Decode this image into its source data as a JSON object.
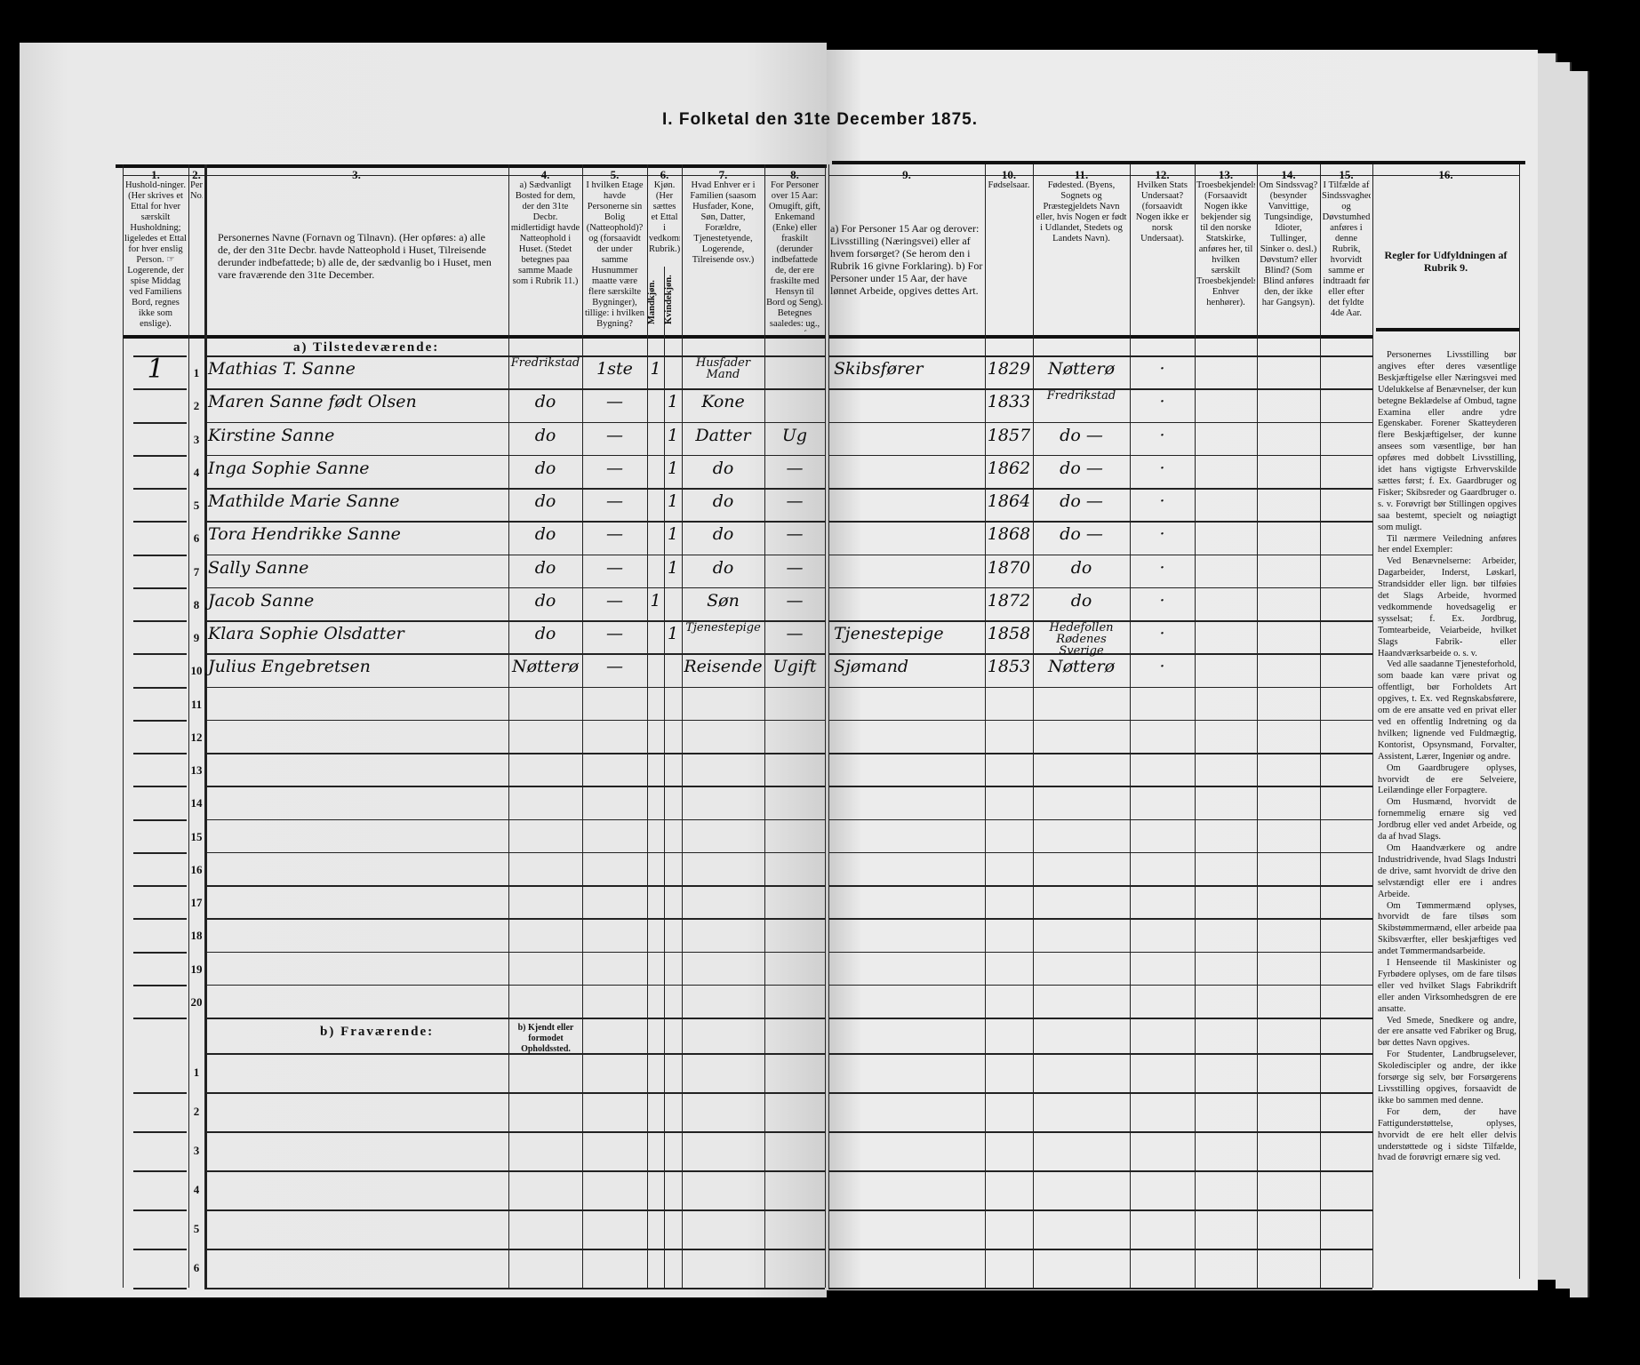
{
  "title": "I. Folketal den 31te December 1875.",
  "header": {
    "columns": [
      {
        "num": "1.",
        "text": "Hushold-ninger. (Her skrives et Ettal for hver særskilt Husholdning; ligeledes et Ettal for hver enslig Person. ☞ Logerende, der spise Middag ved Familiens Bord, regnes ikke som enslige)."
      },
      {
        "num": "2.",
        "text": "Personernes No."
      },
      {
        "num": "3.",
        "text": "Personernes Navne (Fornavn og Tilnavn). (Her opføres: a) alle de, der den 31te Decbr. havde Natteophold i Huset, Tilreisende derunder indbefattede; b) alle de, der sædvanlig bo i Huset, men vare fraværende den 31te December."
      },
      {
        "num": "4.",
        "text": "a) Sædvanligt Bosted for dem, der den 31te Decbr. midlertidigt havde Natteophold i Huset. (Stedet betegnes paa samme Maade som i Rubrik 11.)"
      },
      {
        "num": "5.",
        "text": "I hvilken Etage havde Personerne sin Bolig (Natteophold)? og (forsaavidt der under samme Husnummer maatte være flere særskilte Bygninger), tillige: i hvilken Bygning?"
      },
      {
        "num": "6.",
        "text": "Kjøn. (Her sættes et Ettal i vedkommende Rubrik.)",
        "sub": [
          "Mandkjøn.",
          "Kvindekjøn."
        ]
      },
      {
        "num": "7.",
        "text": "Hvad Enhver er i Familien (saasom Husfader, Kone, Søn, Datter, Forældre, Tjenestetyende, Logerende, Tilreisende osv.)"
      },
      {
        "num": "8.",
        "text": "For Personer over 15 Aar: Omugift, gift, Enkemand (Enke) eller fraskilt (derunder indbefattede de, der ere fraskilte med Hensyn til Bord og Seng). Betegnes saaledes: ug., g., e., f."
      },
      {
        "num": "9.",
        "text": "a) For Personer 15 Aar og derover: Livsstilling (Næringsvei) eller af hvem forsørget? (Se herom den i Rubrik 16 givne Forklaring). b) For Personer under 15 Aar, der have lønnet Arbeide, opgives dettes Art."
      },
      {
        "num": "10.",
        "text": "Fødselsaar."
      },
      {
        "num": "11.",
        "text": "Fødested. (Byens, Sognets og Præstegjeldets Navn eller, hvis Nogen er født i Udlandet, Stedets og Landets Navn)."
      },
      {
        "num": "12.",
        "text": "Hvilken Stats Undersaat? (forsaavidt Nogen ikke er norsk Undersaat)."
      },
      {
        "num": "13.",
        "text": "Troesbekjendelse. (Forsaavidt Nogen ikke bekjender sig til den norske Statskirke, anføres her, til hvilken særskilt Troesbekjendelse Enhver henhører)."
      },
      {
        "num": "14.",
        "text": "Om Sindssvag? (besynder Vanvittige, Tungsindige, Idioter, Tullinger, Sinker o. desl.) Døvstum? eller Blind? (Som Blind anføres den, der ikke har Gangsyn)."
      },
      {
        "num": "15.",
        "text": "I Tilfælde af Sindssvaghed og Døvstumhed anføres i denne Rubrik, hvorvidt samme er indtraadt før eller efter det fyldte 4de Aar."
      },
      {
        "num": "16.",
        "text": "Regler for Udfyldningen af Rubrik 9."
      }
    ]
  },
  "sections": {
    "present": "a) Tilstedeværende:",
    "absent": "b) Fraværende:",
    "absent_col4": "b) Kjendt eller formodet Opholdssted."
  },
  "rows": [
    {
      "nr": "1",
      "hh": "1",
      "name": "Mathias T. Sanne",
      "bosted": "Fredrikstad",
      "etage": "1ste",
      "m": "1",
      "fam": "Husfader Mand",
      "liv": "Skibsfører",
      "aar": "1829",
      "fod": "Nøtterø",
      "stat": "·"
    },
    {
      "nr": "2",
      "name": "Maren Sanne født Olsen",
      "bosted": "do",
      "etage": "—",
      "k": "1",
      "fam": "Kone",
      "aar": "1833",
      "fod": "Fredrikstad",
      "stat": "·"
    },
    {
      "nr": "3",
      "name": "Kirstine Sanne",
      "bosted": "do",
      "etage": "—",
      "k": "1",
      "fam": "Datter",
      "civ": "Ug",
      "aar": "1857",
      "fod": "do —",
      "stat": "·"
    },
    {
      "nr": "4",
      "name": "Inga Sophie Sanne",
      "bosted": "do",
      "etage": "—",
      "k": "1",
      "fam": "do",
      "civ": "—",
      "aar": "1862",
      "fod": "do —",
      "stat": "·"
    },
    {
      "nr": "5",
      "name": "Mathilde Marie Sanne",
      "bosted": "do",
      "etage": "—",
      "k": "1",
      "fam": "do",
      "civ": "—",
      "aar": "1864",
      "fod": "do —",
      "stat": "·"
    },
    {
      "nr": "6",
      "name": "Tora Hendrikke Sanne",
      "bosted": "do",
      "etage": "—",
      "k": "1",
      "fam": "do",
      "civ": "—",
      "aar": "1868",
      "fod": "do —",
      "stat": "·"
    },
    {
      "nr": "7",
      "name": "Sally Sanne",
      "bosted": "do",
      "etage": "—",
      "k": "1",
      "fam": "do",
      "civ": "—",
      "aar": "1870",
      "fod": "do",
      "stat": "·"
    },
    {
      "nr": "8",
      "name": "Jacob Sanne",
      "bosted": "do",
      "etage": "—",
      "m": "1",
      "fam": "Søn",
      "civ": "—",
      "aar": "1872",
      "fod": "do",
      "stat": "·"
    },
    {
      "nr": "9",
      "name": "Klara Sophie Olsdatter",
      "bosted": "do",
      "etage": "—",
      "k": "1",
      "fam": "Tjenestepige",
      "civ": "—",
      "liv": "Tjenestepige",
      "aar": "1858",
      "fod": "Hedefollen Rødenes Sverige",
      "stat": "·"
    },
    {
      "nr": "10",
      "name": "Julius Engebretsen",
      "bosted": "Nøtterø",
      "etage": "—",
      "fam": "Reisende",
      "civ": "Ugift",
      "liv": "Sjømand",
      "aar": "1853",
      "fod": "Nøtterø",
      "stat": "·"
    },
    {
      "nr": "11"
    },
    {
      "nr": "12"
    },
    {
      "nr": "13"
    },
    {
      "nr": "14"
    },
    {
      "nr": "15"
    },
    {
      "nr": "16"
    },
    {
      "nr": "17"
    },
    {
      "nr": "18"
    },
    {
      "nr": "19"
    },
    {
      "nr": "20"
    }
  ],
  "absent_rows": [
    {
      "nr": "1"
    },
    {
      "nr": "2"
    },
    {
      "nr": "3"
    },
    {
      "nr": "4"
    },
    {
      "nr": "5"
    },
    {
      "nr": "6"
    }
  ],
  "rules_text": [
    "Personernes Livsstilling bør angives efter deres væsentlige Beskjæftigelse eller Næringsvei med Udelukkelse af Benævnelser, der kun betegne Beklædelse af Ombud, tagne Examina eller andre ydre Egenskaber. Forener Skatteyderen flere Beskjæftigelser, der kunne ansees som væsentlige, bør han opføres med dobbelt Livsstilling, idet hans vigtigste Erhvervskilde sættes først; f. Ex. Gaardbruger og Fisker; Skibsreder og Gaardbruger o. s. v. Forøvrigt bør Stillingen opgives saa bestemt, specielt og nøiagtigt som muligt.",
    "Til nærmere Veiledning anføres her endel Exempler:",
    "Ved Benævnelserne: Arbeider, Dagarbeider, Inderst, Løskarl, Strandsidder eller lign. bør tilføies det Slags Arbeide, hvormed vedkommende hovedsagelig er sysselsat; f. Ex. Jordbrug, Tomtearbeide, Veiarbeide, hvilket Slags Fabrik- eller Haandværksarbeide o. s. v.",
    "Ved alle saadanne Tjenesteforhold, som baade kan være privat og offentligt, bør Forholdets Art opgives, t. Ex. ved Regnskabsførere, om de ere ansatte ved en privat eller ved en offentlig Indretning og da hvilken; lignende ved Fuldmægtig, Kontorist, Opsynsmand, Forvalter, Assistent, Lærer, Ingeniør og andre.",
    "Om Gaardbrugere oplyses, hvorvidt de ere Selveiere, Leilændinge eller Forpagtere.",
    "Om Husmænd, hvorvidt de fornemmelig ernære sig ved Jordbrug eller ved andet Arbeide, og da af hvad Slags.",
    "Om Haandværkere og andre Industridrivende, hvad Slags Industri de drive, samt hvorvidt de drive den selvstændigt eller ere i andres Arbeide.",
    "Om Tømmermænd oplyses, hvorvidt de fare tilsøs som Skibstømmermænd, eller arbeide paa Skibsværfter, eller beskjæftiges ved andet Tømmermandsarbeide.",
    "I Henseende til Maskinister og Fyrbødere oplyses, om de fare tilsøs eller ved hvilket Slags Fabrikdrift eller anden Virksomhedsgren de ere ansatte.",
    "Ved Smede, Snedkere og andre, der ere ansatte ved Fabriker og Brug, bør dettes Navn opgives.",
    "For Studenter, Landbrugselever, Skolediscipler og andre, der ikke forsørge sig selv, bør Forsørgerens Livsstilling opgives, forsaavidt de ikke bo sammen med denne.",
    "For dem, der have Fattigunderstøttelse, oplyses, hvorvidt de ere helt eller delvis understøttede og i sidste Tilfælde, hvad de forøvrigt ernære sig ved."
  ]
}
